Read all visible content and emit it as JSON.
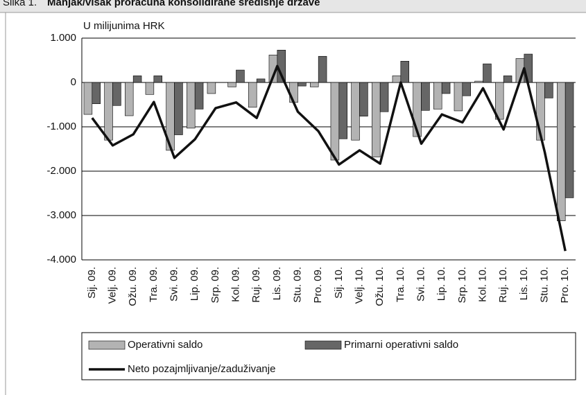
{
  "chart_data": {
    "type": "bar_line",
    "figure_label": "Slika 1.",
    "title": "Manjak/višak proračuna konsolidirane središnje države",
    "unit_label": "U milijunima HRK",
    "categories": [
      "Sij. 09.",
      "Velj. 09.",
      "Ožu. 09.",
      "Tra. 09.",
      "Svi. 09.",
      "Lip. 09.",
      "Srp. 09.",
      "Kol. 09.",
      "Ruj. 09.",
      "Lis. 09.",
      "Stu. 09.",
      "Pro. 09.",
      "Sij. 10.",
      "Velj. 10.",
      "Ožu. 10.",
      "Tra. 10.",
      "Svi. 10.",
      "Lip. 10.",
      "Srp. 10.",
      "Kol. 10.",
      "Ruj. 10.",
      "Lis. 10.",
      "Stu. 10.",
      "Pro. 10."
    ],
    "series": [
      {
        "name": "Operativni saldo",
        "kind": "bar",
        "color": "#b3b3b3",
        "values": [
          -720,
          -1300,
          -750,
          -270,
          -1530,
          -1030,
          -250,
          -100,
          -560,
          620,
          -450,
          -100,
          -1750,
          -1300,
          -1680,
          150,
          -1220,
          -600,
          -640,
          30,
          -830,
          540,
          -1300,
          -3120
        ]
      },
      {
        "name": "Primarni operativni saldo",
        "kind": "bar",
        "color": "#666666",
        "values": [
          -480,
          -520,
          150,
          150,
          -1180,
          -600,
          0,
          280,
          80,
          730,
          -80,
          590,
          -1270,
          -760,
          -660,
          480,
          -630,
          -250,
          -300,
          420,
          150,
          640,
          -350,
          -2600
        ]
      },
      {
        "name": "Neto pozajmljivanje/zaduživanje",
        "kind": "line",
        "color": "#111111",
        "values": [
          -800,
          -1420,
          -1170,
          -440,
          -1700,
          -1280,
          -580,
          -450,
          -800,
          370,
          -660,
          -1100,
          -1850,
          -1530,
          -1830,
          0,
          -1380,
          -720,
          -900,
          -130,
          -1060,
          320,
          -1570,
          -3800
        ]
      }
    ],
    "ylim": [
      -4000,
      1000
    ],
    "yticks": [
      {
        "value": 1000,
        "label": "1.000"
      },
      0,
      {
        "value": -1000,
        "label": "-1.000"
      },
      {
        "value": -2000,
        "label": "-2.000"
      },
      {
        "value": -3000,
        "label": "-3.000"
      },
      {
        "value": -4000,
        "label": "-4.000"
      }
    ],
    "grid": true
  }
}
